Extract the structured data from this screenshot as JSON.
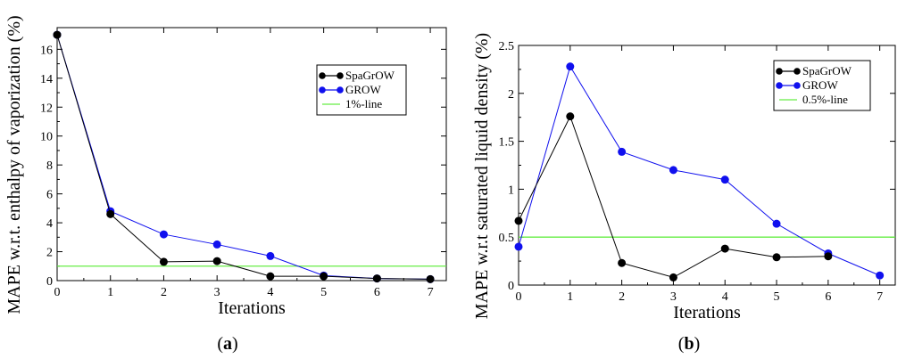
{
  "chart_data": [
    {
      "type": "line",
      "panel_label": "a",
      "xlabel": "Iterations",
      "ylabel": "MAPE w.r.t. enthalpy of vaporization (%)",
      "xlim": [
        0,
        7.3
      ],
      "ylim": [
        0,
        17.5
      ],
      "xticks": [
        0,
        1,
        2,
        3,
        4,
        5,
        6,
        7
      ],
      "yticks": [
        0,
        2,
        4,
        6,
        8,
        10,
        12,
        14,
        16
      ],
      "legend_position": "top-right",
      "series": [
        {
          "name": "SpaGrOW",
          "color": "#000000",
          "x": [
            0,
            1,
            2,
            3,
            4,
            5,
            6,
            7
          ],
          "y": [
            17.0,
            4.6,
            1.3,
            1.35,
            0.3,
            0.3,
            0.15,
            0.1
          ]
        },
        {
          "name": "GROW",
          "color": "#1010ee",
          "x": [
            0,
            1,
            2,
            3,
            4,
            5,
            6,
            7
          ],
          "y": [
            17.0,
            4.8,
            3.2,
            2.5,
            1.7,
            0.35,
            0.15,
            0.1
          ]
        },
        {
          "name": "1%-line",
          "color": "#66ee44",
          "reference": 1.0
        }
      ]
    },
    {
      "type": "line",
      "panel_label": "b",
      "xlabel": "Iterations",
      "ylabel": "MAPE w.r.t saturated liquid density (%)",
      "xlim": [
        0,
        7.3
      ],
      "ylim": [
        0,
        2.5
      ],
      "xticks": [
        0,
        1,
        2,
        3,
        4,
        5,
        6,
        7
      ],
      "yticks": [
        0,
        0.5,
        1,
        1.5,
        2,
        2.5
      ],
      "legend_position": "top-right",
      "series": [
        {
          "name": "SpaGrOW",
          "color": "#000000",
          "x": [
            0,
            1,
            2,
            3,
            4,
            5,
            6
          ],
          "y": [
            0.67,
            1.76,
            0.23,
            0.08,
            0.38,
            0.29,
            0.3
          ]
        },
        {
          "name": "GROW",
          "color": "#1010ee",
          "x": [
            0,
            1,
            2,
            3,
            4,
            5,
            6,
            7
          ],
          "y": [
            0.4,
            2.28,
            1.39,
            1.2,
            1.1,
            0.64,
            0.33,
            0.1
          ]
        },
        {
          "name": "0.5%-line",
          "color": "#66ee44",
          "reference": 0.5
        }
      ]
    }
  ]
}
